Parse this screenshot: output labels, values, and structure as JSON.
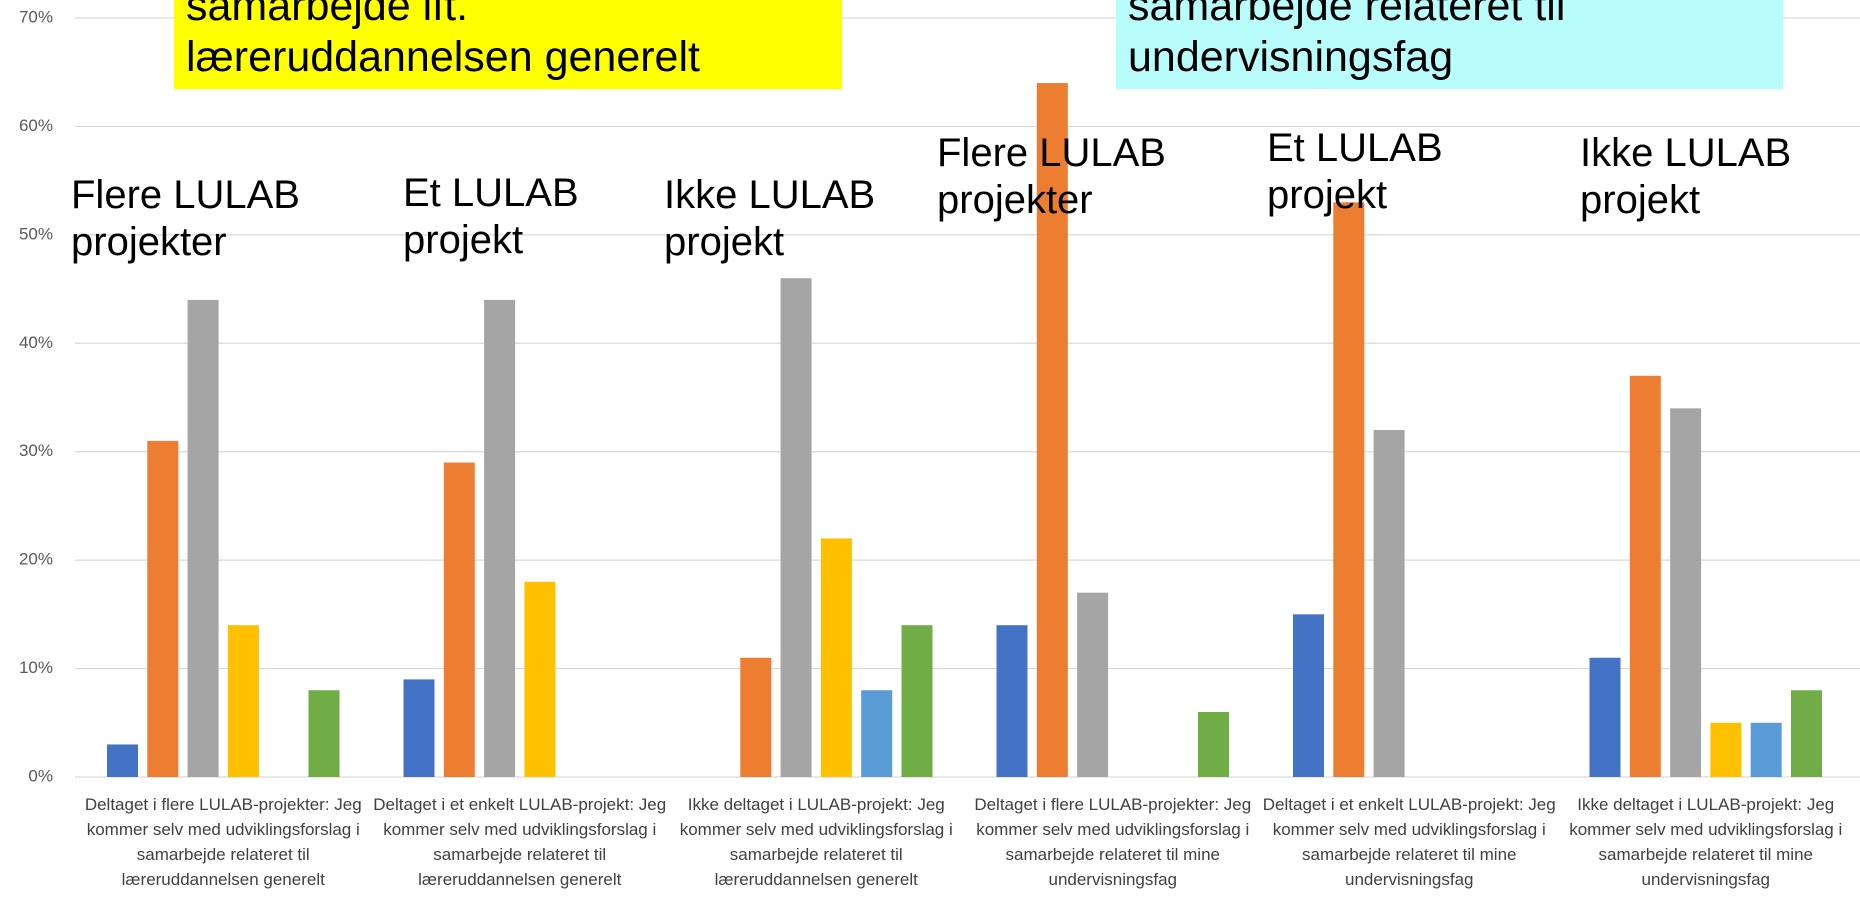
{
  "chart_data": {
    "type": "bar",
    "categories": [
      "Deltaget i flere LULAB-projekter: Jeg kommer selv med udviklingsforslag i samarbejde relateret til læreruddannelsen generelt",
      "Deltaget i et enkelt LULAB-projekt: Jeg kommer selv med udviklingsforslag i samarbejde relateret til læreruddannelsen generelt",
      "Ikke deltaget i LULAB-projekt: Jeg kommer selv med udviklingsforslag i samarbejde relateret til læreruddannelsen generelt",
      "Deltaget i flere LULAB-projekter: Jeg kommer selv med udviklingsforslag i samarbejde relateret til mine undervisningsfag",
      "Deltaget i et enkelt LULAB-projekt: Jeg kommer selv med udviklingsforslag i samarbejde relateret til mine undervisningsfag",
      "Ikke deltaget i LULAB-projekt: Jeg kommer selv med udviklingsforslag i samarbejde relateret til mine undervisningsfag"
    ],
    "series": [
      {
        "color": "#4472c4",
        "values": [
          3,
          9,
          0,
          14,
          15,
          11
        ]
      },
      {
        "color": "#ed7d31",
        "values": [
          31,
          29,
          11,
          64,
          53,
          37
        ]
      },
      {
        "color": "#a5a5a5",
        "values": [
          44,
          44,
          46,
          17,
          32,
          34
        ]
      },
      {
        "color": "#ffc000",
        "values": [
          14,
          18,
          22,
          0,
          0,
          5
        ]
      },
      {
        "color": "#5b9bd5",
        "values": [
          0,
          0,
          8,
          0,
          0,
          5
        ]
      },
      {
        "color": "#70ad47",
        "values": [
          8,
          0,
          14,
          6,
          0,
          8
        ]
      }
    ],
    "ylim": [
      0,
      70
    ],
    "yticks": [
      {
        "value": 0,
        "label": "0%"
      },
      {
        "value": 10,
        "label": "10%"
      },
      {
        "value": 20,
        "label": "20%"
      },
      {
        "value": 30,
        "label": "30%"
      },
      {
        "value": 40,
        "label": "40%"
      },
      {
        "value": 50,
        "label": "50%"
      },
      {
        "value": 60,
        "label": "60%"
      },
      {
        "value": 70,
        "label": "70%"
      }
    ],
    "grid": true,
    "annotations": [
      "samarbejde ift.\nlæreruddannelsen generelt",
      "samarbejde relateret til\nundervisningsfag",
      "Flere LULAB\nprojekter",
      "Et LULAB\nprojekt",
      "Ikke LULAB\nprojekt",
      "Flere LULAB\nprojekter",
      "Et LULAB\nprojekt",
      "Ikke LULAB\nprojekt"
    ]
  }
}
